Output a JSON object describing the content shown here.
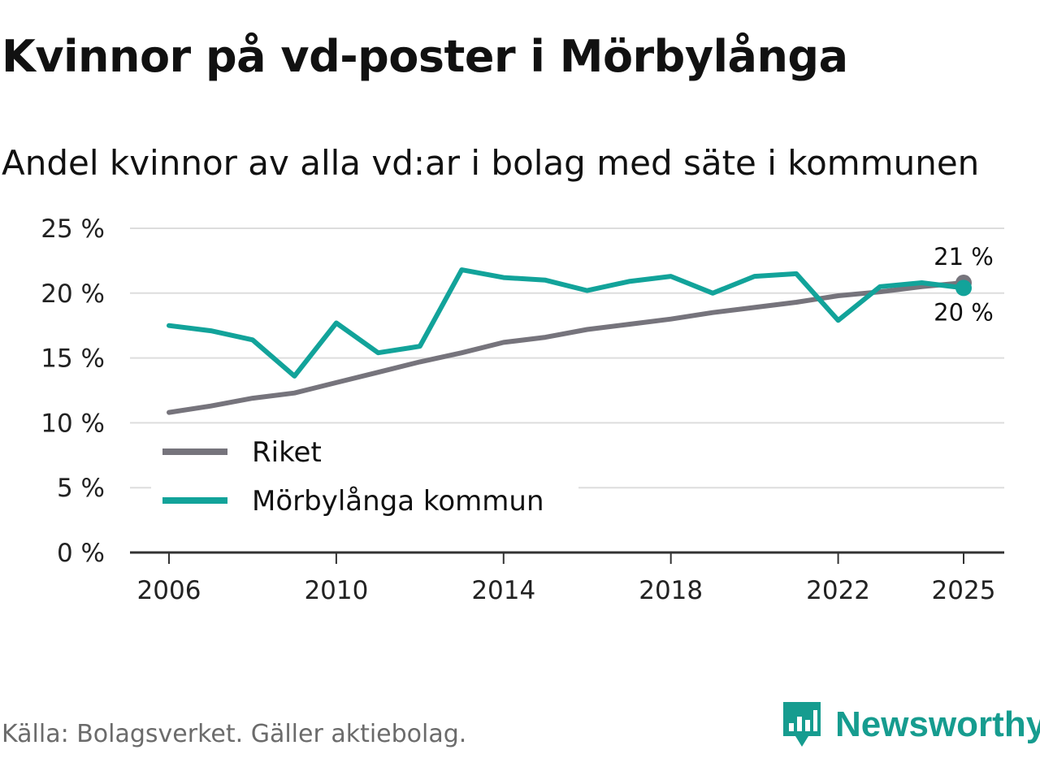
{
  "title": "Kvinnor på vd-poster i Mörbylånga",
  "subtitle": "Andel kvinnor av alla vd:ar i bolag med säte i kommunen",
  "source": "Källa: Bolagsverket. Gäller aktiebolag.",
  "brand": "Newsworthy",
  "colors": {
    "riket": "#76747c",
    "kommun": "#12a39a",
    "grid": "#dddddd",
    "axis": "#333333",
    "brand": "#169c8f"
  },
  "chart_data": {
    "type": "line",
    "title": "Kvinnor på vd-poster i Mörbylånga",
    "subtitle": "Andel kvinnor av alla vd:ar i bolag med säte i kommunen",
    "xlabel": "",
    "ylabel": "",
    "x": [
      2006,
      2007,
      2008,
      2009,
      2010,
      2011,
      2012,
      2013,
      2014,
      2015,
      2016,
      2017,
      2018,
      2019,
      2020,
      2021,
      2022,
      2023,
      2024,
      2025
    ],
    "xlim": [
      2006,
      2025
    ],
    "ylim": [
      0,
      25
    ],
    "grid": true,
    "legend_position": "bottom-left",
    "x_ticks": [
      {
        "value": 2006,
        "label": "2006"
      },
      {
        "value": 2010,
        "label": "2010"
      },
      {
        "value": 2014,
        "label": "2014"
      },
      {
        "value": 2018,
        "label": "2018"
      },
      {
        "value": 2022,
        "label": "2022"
      },
      {
        "value": 2025,
        "label": "2025"
      }
    ],
    "y_ticks": [
      {
        "value": 0,
        "label": "0 %"
      },
      {
        "value": 5,
        "label": "5 %"
      },
      {
        "value": 10,
        "label": "10 %"
      },
      {
        "value": 15,
        "label": "15 %"
      },
      {
        "value": 20,
        "label": "20 %"
      },
      {
        "value": 25,
        "label": "25 %"
      }
    ],
    "series": [
      {
        "name": "Riket",
        "key": "riket",
        "values": [
          10.8,
          11.3,
          11.9,
          12.3,
          13.1,
          13.9,
          14.7,
          15.4,
          16.2,
          16.6,
          17.2,
          17.6,
          18.0,
          18.5,
          18.9,
          19.3,
          19.8,
          20.1,
          20.5,
          20.8
        ],
        "end_label": "21 %"
      },
      {
        "name": "Mörbylånga kommun",
        "key": "kommun",
        "values": [
          17.5,
          17.1,
          16.4,
          13.6,
          17.7,
          15.4,
          15.9,
          21.8,
          21.2,
          21.0,
          20.2,
          20.9,
          21.3,
          20.0,
          21.3,
          21.5,
          17.9,
          20.5,
          20.8,
          20.4
        ],
        "end_label": "20 %"
      }
    ]
  }
}
